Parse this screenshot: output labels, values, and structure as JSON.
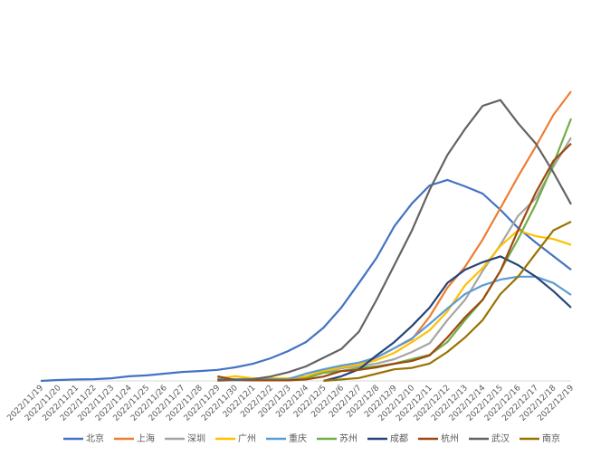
{
  "chart_data": {
    "type": "line",
    "x": [
      "2022/11/19",
      "2022/11/20",
      "2022/11/21",
      "2022/11/22",
      "2022/11/23",
      "2022/11/24",
      "2022/11/25",
      "2022/11/26",
      "2022/11/27",
      "2022/11/28",
      "2022/11/29",
      "2022/11/30",
      "2022/12/1",
      "2022/12/2",
      "2022/12/3",
      "2022/12/4",
      "2022/12/5",
      "2022/12/6",
      "2022/12/7",
      "2022/12/8",
      "2022/12/9",
      "2022/12/10",
      "2022/12/11",
      "2022/12/12",
      "2022/12/13",
      "2022/12/14",
      "2022/12/15",
      "2022/12/16",
      "2022/12/17",
      "2022/12/18",
      "2022/12/19"
    ],
    "ylim": [
      0,
      100
    ],
    "series": [
      {
        "name": "北京",
        "color": "#4472c4",
        "values": [
          0,
          0.3,
          0.5,
          0.6,
          0.9,
          1.6,
          1.9,
          2.5,
          3.1,
          3.4,
          3.8,
          4.7,
          5.9,
          7.8,
          10.3,
          13.4,
          18.4,
          25.3,
          33.8,
          42.5,
          53.4,
          61.3,
          67.5,
          69.4,
          67.2,
          64.7,
          59.1,
          52.8,
          47.8,
          43.1,
          38.4
        ]
      },
      {
        "name": "上海",
        "color": "#ed7d31",
        "values": [
          null,
          null,
          null,
          null,
          null,
          null,
          null,
          null,
          null,
          null,
          0,
          0.3,
          0.3,
          0.3,
          0.6,
          0.9,
          2.8,
          4.4,
          5.3,
          8.1,
          11.3,
          14.4,
          22.2,
          32.2,
          39.4,
          48.8,
          59.7,
          70.6,
          80.9,
          91.9,
          100
        ]
      },
      {
        "name": "深圳",
        "color": "#a5a5a5",
        "values": [
          null,
          null,
          null,
          null,
          null,
          null,
          null,
          null,
          null,
          null,
          0.5,
          0.5,
          0.5,
          0.5,
          0.5,
          1.6,
          2.8,
          4.4,
          5,
          6,
          7.5,
          10,
          13,
          21,
          28,
          38,
          47,
          57,
          63,
          74,
          84
        ]
      },
      {
        "name": "广州",
        "color": "#ffc000",
        "values": [
          null,
          null,
          null,
          null,
          null,
          null,
          null,
          null,
          null,
          null,
          0.9,
          1.6,
          0.9,
          0.9,
          0.9,
          1.6,
          3.4,
          4.7,
          5.6,
          7.2,
          9.7,
          13.4,
          17.5,
          24,
          33,
          39,
          46.6,
          52,
          50,
          49,
          47
        ]
      },
      {
        "name": "重庆",
        "color": "#5b9bd5",
        "values": [
          null,
          null,
          null,
          null,
          null,
          null,
          null,
          null,
          null,
          null,
          0.6,
          0.6,
          0.6,
          0.6,
          0.6,
          2.5,
          4,
          5.3,
          6.3,
          8.1,
          11.3,
          14.7,
          19.7,
          25,
          30,
          33,
          35,
          36,
          36,
          33.8,
          29.7
        ]
      },
      {
        "name": "苏州",
        "color": "#70ad47",
        "values": [
          null,
          null,
          null,
          null,
          null,
          null,
          null,
          null,
          null,
          null,
          0.3,
          0.3,
          0.3,
          0.3,
          0.3,
          0.9,
          2.8,
          3.4,
          4.4,
          5,
          6,
          7.5,
          9,
          13.4,
          21,
          28,
          38,
          49,
          61,
          75,
          90.6
        ]
      },
      {
        "name": "成都",
        "color": "#264478",
        "values": [
          null,
          null,
          null,
          null,
          null,
          null,
          null,
          null,
          null,
          null,
          null,
          null,
          null,
          null,
          null,
          null,
          0,
          1.6,
          4,
          8.8,
          13.4,
          19,
          25.3,
          33.8,
          38.4,
          41,
          43,
          40,
          36,
          31,
          25.3
        ]
      },
      {
        "name": "杭州",
        "color": "#9e480e",
        "values": [
          null,
          null,
          null,
          null,
          null,
          null,
          null,
          null,
          null,
          null,
          1.6,
          0.3,
          0.2,
          0.2,
          0.2,
          0.5,
          1.5,
          3.4,
          3.8,
          4.7,
          5.9,
          6.9,
          8.8,
          15,
          22,
          28,
          38,
          52,
          65,
          76,
          82
        ]
      },
      {
        "name": "武汉",
        "color": "#636363",
        "values": [
          null,
          null,
          null,
          null,
          null,
          null,
          null,
          null,
          null,
          null,
          0.3,
          0.3,
          0.6,
          1.5,
          3,
          5,
          8,
          11,
          17,
          28,
          40,
          52,
          66,
          78,
          87,
          95,
          97,
          89,
          82,
          72,
          61
        ]
      },
      {
        "name": "南京",
        "color": "#997300",
        "values": [
          null,
          null,
          null,
          null,
          null,
          null,
          null,
          null,
          null,
          null,
          null,
          null,
          null,
          null,
          null,
          null,
          0,
          0.5,
          1,
          2.5,
          4,
          4.5,
          6,
          10,
          15,
          21,
          30,
          36,
          44,
          52,
          55
        ]
      }
    ]
  }
}
